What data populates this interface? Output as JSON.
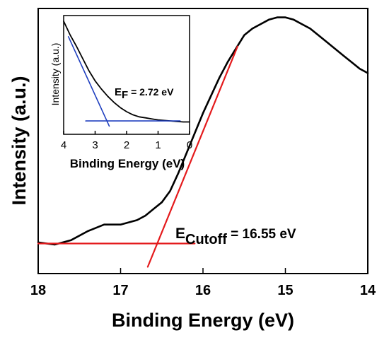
{
  "chart_data": [
    {
      "type": "line",
      "title": "",
      "xlabel": "Binding Energy (eV)",
      "ylabel": "Intensity (a.u.)",
      "xlim": [
        18,
        14
      ],
      "x_reversed": true,
      "x_ticks": [
        18,
        17,
        16,
        15,
        14
      ],
      "y_ticks_labeled": false,
      "grid": false,
      "series": [
        {
          "role": "spectrum",
          "color": "#000000",
          "x": [
            18.0,
            17.8,
            17.6,
            17.4,
            17.2,
            17.0,
            16.8,
            16.7,
            16.6,
            16.5,
            16.4,
            16.3,
            16.2,
            16.1,
            16.0,
            15.9,
            15.8,
            15.7,
            15.6,
            15.5,
            15.4,
            15.3,
            15.2,
            15.1,
            15.0,
            14.9,
            14.8,
            14.7,
            14.6,
            14.5,
            14.4,
            14.3,
            14.2,
            14.1,
            14.0
          ],
          "y": [
            0.02,
            0.01,
            0.03,
            0.07,
            0.1,
            0.1,
            0.12,
            0.14,
            0.17,
            0.2,
            0.25,
            0.33,
            0.42,
            0.51,
            0.6,
            0.68,
            0.76,
            0.83,
            0.89,
            0.95,
            0.98,
            1.0,
            1.02,
            1.03,
            1.03,
            1.02,
            1.0,
            0.98,
            0.95,
            0.92,
            0.89,
            0.86,
            0.83,
            0.8,
            0.78
          ]
        },
        {
          "role": "baseline-fit",
          "color": "#e41a1c",
          "x": [
            18.0,
            16.1
          ],
          "y": [
            0.015,
            0.015
          ]
        },
        {
          "role": "edge-fit",
          "color": "#e41a1c",
          "x": [
            16.67,
            15.58
          ],
          "y": [
            -0.09,
            0.9
          ]
        }
      ],
      "annotations": [
        {
          "text": "E",
          "sub": "Cutoff",
          "suffix": " = 16.55 eV"
        }
      ]
    },
    {
      "type": "line",
      "role": "inset",
      "title": "",
      "xlabel": "Binding Energy (eV)",
      "ylabel": "Intensity (a.u.)",
      "xlim": [
        4,
        0
      ],
      "x_reversed": true,
      "x_ticks": [
        4,
        3,
        2,
        1,
        0
      ],
      "y_ticks_labeled": false,
      "grid": false,
      "series": [
        {
          "role": "spectrum",
          "color": "#000000",
          "x": [
            4.0,
            3.8,
            3.6,
            3.4,
            3.2,
            3.0,
            2.8,
            2.6,
            2.4,
            2.2,
            2.0,
            1.8,
            1.6,
            1.4,
            1.2,
            1.0,
            0.8,
            0.6,
            0.4,
            0.2,
            0.0
          ],
          "y": [
            1.0,
            0.87,
            0.76,
            0.64,
            0.52,
            0.42,
            0.34,
            0.27,
            0.21,
            0.16,
            0.12,
            0.09,
            0.07,
            0.06,
            0.05,
            0.04,
            0.035,
            0.03,
            0.025,
            0.02,
            0.02
          ]
        },
        {
          "role": "baseline-fit",
          "color": "#1f3fbf",
          "x": [
            3.3,
            0.3
          ],
          "y": [
            0.03,
            0.03
          ]
        },
        {
          "role": "edge-fit",
          "color": "#1f3fbf",
          "x": [
            3.85,
            2.55
          ],
          "y": [
            0.85,
            -0.02
          ]
        }
      ],
      "annotations": [
        {
          "text": "E",
          "sub": "F",
          "suffix": " = 2.72 eV"
        }
      ]
    }
  ]
}
